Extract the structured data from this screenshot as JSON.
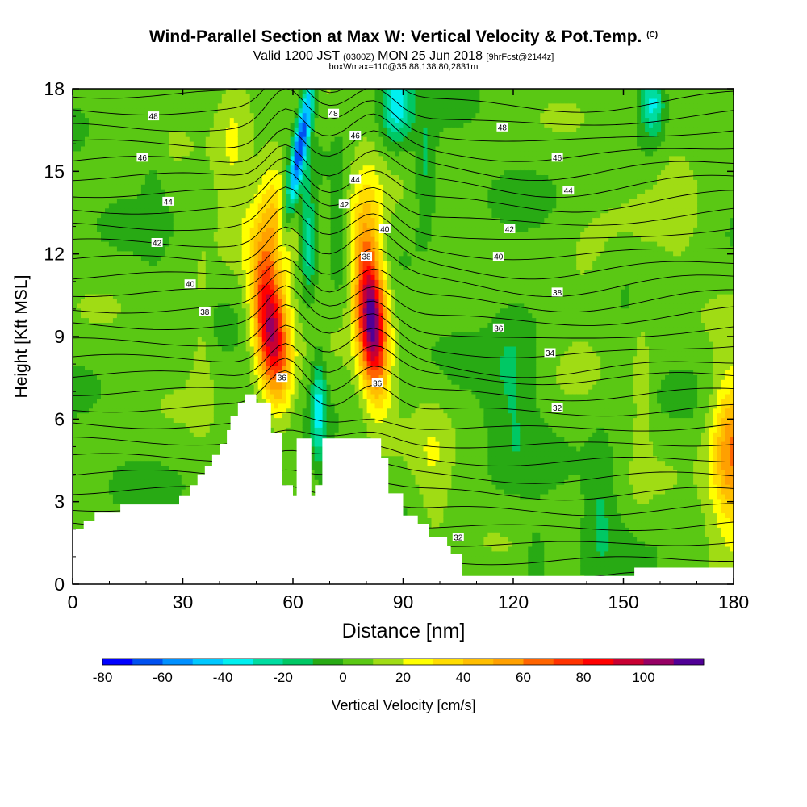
{
  "title": "Wind-Parallel Section at Max W: Vertical Velocity & Pot.Temp.",
  "title_mark": "(C)",
  "subtitle": {
    "part1": "Valid 1200 JST",
    "part2": "(0300Z)",
    "part3": "MON 25 Jun 2018",
    "part4": "[9hrFcst@2144z]"
  },
  "subtitle2": "boxWmax=110@35.88,138.80,2831m",
  "colorbar_label": "Vertical Velocity [cm/s]",
  "colors": {
    "-80": "#0000ff",
    "-70": "#0050f0",
    "-60": "#0090ff",
    "-50": "#00c8ff",
    "-40": "#00f0f0",
    "-30": "#00dca0",
    "-20": "#00c864",
    "-10": "#28aa14",
    "0": "#5ac814",
    "10": "#a0dc14",
    "20": "#ffff00",
    "30": "#ffdc00",
    "40": "#ffbe00",
    "50": "#ffa000",
    "60": "#ff6400",
    "70": "#ff3200",
    "80": "#ff0000",
    "90": "#c80032",
    "100": "#960064",
    "110": "#500096"
  },
  "chart_data": {
    "type": "contour",
    "xlabel": "Distance [nm]",
    "ylabel": "Height [Kft MSL]",
    "xlim": [
      0,
      180
    ],
    "ylim": [
      0,
      18
    ],
    "xticks": [
      "0",
      "30",
      "60",
      "90",
      "120",
      "150",
      "180"
    ],
    "yticks": [
      "0",
      "3",
      "6",
      "9",
      "12",
      "15",
      "18"
    ],
    "colorbar": {
      "levels": [
        -80,
        -70,
        -60,
        -50,
        -40,
        -30,
        -20,
        -10,
        0,
        10,
        20,
        30,
        40,
        50,
        60,
        70,
        80,
        90,
        100,
        110
      ],
      "tick_labels": [
        "-80",
        "-60",
        "-40",
        "-20",
        "0",
        "20",
        "40",
        "60",
        "80",
        "100"
      ],
      "label": "Vertical Velocity [cm/s]"
    },
    "terrain": [
      [
        0,
        2.0
      ],
      [
        3,
        2.0
      ],
      [
        3,
        2.3
      ],
      [
        6,
        2.3
      ],
      [
        6,
        2.6
      ],
      [
        13,
        2.6
      ],
      [
        13,
        2.9
      ],
      [
        29,
        2.9
      ],
      [
        29,
        3.2
      ],
      [
        32,
        3.2
      ],
      [
        32,
        3.6
      ],
      [
        34,
        3.6
      ],
      [
        34,
        4.0
      ],
      [
        36,
        4.0
      ],
      [
        36,
        4.3
      ],
      [
        38,
        4.3
      ],
      [
        38,
        4.7
      ],
      [
        40,
        4.7
      ],
      [
        40,
        5.1
      ],
      [
        42,
        5.1
      ],
      [
        42,
        5.6
      ],
      [
        43,
        5.6
      ],
      [
        43,
        6.1
      ],
      [
        45,
        6.1
      ],
      [
        45,
        6.6
      ],
      [
        47,
        6.6
      ],
      [
        47,
        6.9
      ],
      [
        50,
        6.9
      ],
      [
        50,
        6.6
      ],
      [
        54,
        6.6
      ],
      [
        54,
        5.5
      ],
      [
        57,
        5.5
      ],
      [
        57,
        3.6
      ],
      [
        60,
        3.6
      ],
      [
        60,
        3.2
      ],
      [
        61,
        3.2
      ],
      [
        61,
        5.3
      ],
      [
        65,
        5.3
      ],
      [
        65,
        3.2
      ],
      [
        66,
        3.2
      ],
      [
        66,
        3.6
      ],
      [
        68,
        3.6
      ],
      [
        68,
        5.3
      ],
      [
        84,
        5.3
      ],
      [
        84,
        4.6
      ],
      [
        86,
        4.6
      ],
      [
        86,
        3.3
      ],
      [
        90,
        3.3
      ],
      [
        90,
        2.5
      ],
      [
        94,
        2.5
      ],
      [
        94,
        2.2
      ],
      [
        97,
        2.2
      ],
      [
        97,
        1.7
      ],
      [
        102,
        1.7
      ],
      [
        102,
        1.4
      ],
      [
        103,
        1.4
      ],
      [
        103,
        1.1
      ],
      [
        106,
        1.1
      ],
      [
        106,
        0.3
      ],
      [
        153,
        0.3
      ],
      [
        153,
        0.6
      ],
      [
        180,
        0.6
      ],
      [
        180,
        0.0
      ],
      [
        0,
        0.0
      ]
    ],
    "updrafts": [
      {
        "x": 54.0,
        "z": 9.3,
        "sx": 4.5,
        "sz": 2.6,
        "amp": 100,
        "tilt": -0.12
      },
      {
        "x": 81.5,
        "z": 9.6,
        "sx": 4.0,
        "sz": 2.6,
        "amp": 110,
        "tilt": -0.08
      },
      {
        "x": 55.0,
        "z": 13.5,
        "sx": 5.0,
        "sz": 2.4,
        "amp": 35,
        "tilt": 0.0
      },
      {
        "x": 80.0,
        "z": 13.0,
        "sx": 5.0,
        "sz": 2.4,
        "amp": 30,
        "tilt": 0.0
      },
      {
        "x": 180.0,
        "z": 4.8,
        "sx": 6.0,
        "sz": 2.8,
        "amp": 60,
        "tilt": 0.0
      },
      {
        "x": 44.0,
        "z": 16.0,
        "sx": 5.0,
        "sz": 3.0,
        "amp": 18,
        "tilt": 0.0
      },
      {
        "x": 165.0,
        "z": 15.0,
        "sx": 6.0,
        "sz": 3.0,
        "amp": 12,
        "tilt": 0.0
      },
      {
        "x": 140.0,
        "z": 11.0,
        "sx": 8.0,
        "sz": 2.5,
        "amp": 10,
        "tilt": 0.0
      },
      {
        "x": 155.0,
        "z": 7.0,
        "sx": 2.5,
        "sz": 3.5,
        "amp": 12,
        "tilt": 0.0
      },
      {
        "x": 98.0,
        "z": 4.0,
        "sx": 5.0,
        "sz": 3.0,
        "amp": 12,
        "tilt": 0.0
      },
      {
        "x": 35.0,
        "z": 9.0,
        "sx": 3.0,
        "sz": 3.0,
        "amp": 12,
        "tilt": 0.0
      }
    ],
    "downdrafts": [
      {
        "x": 62.0,
        "z": 16.0,
        "sx": 2.0,
        "sz": 3.0,
        "amp": -70,
        "tilt": 0.22
      },
      {
        "x": 64.0,
        "z": 12.5,
        "sx": 2.0,
        "sz": 2.0,
        "amp": -30,
        "tilt": 0.0
      },
      {
        "x": 67.0,
        "z": 6.5,
        "sx": 2.0,
        "sz": 2.0,
        "amp": -35,
        "tilt": 0.0
      },
      {
        "x": 88.0,
        "z": 17.5,
        "sx": 4.0,
        "sz": 1.5,
        "amp": -40,
        "tilt": 0.0
      },
      {
        "x": 96.0,
        "z": 15.0,
        "sx": 3.0,
        "sz": 2.0,
        "amp": -20,
        "tilt": 0.0
      },
      {
        "x": 158.0,
        "z": 17.5,
        "sx": 3.0,
        "sz": 1.2,
        "amp": -35,
        "tilt": 0.0
      },
      {
        "x": 120.0,
        "z": 7.5,
        "sx": 7.0,
        "sz": 3.5,
        "amp": -15,
        "tilt": 0.0
      },
      {
        "x": 144.0,
        "z": 3.0,
        "sx": 4.0,
        "sz": 2.5,
        "amp": -15,
        "tilt": 0.0
      },
      {
        "x": 126.0,
        "z": 1.0,
        "sx": 3.0,
        "sz": 1.5,
        "amp": -12,
        "tilt": 0.0
      },
      {
        "x": 22.0,
        "z": 15.0,
        "sx": 3.0,
        "sz": 3.0,
        "amp": -8,
        "tilt": 0.0
      },
      {
        "x": 73.0,
        "z": 13.5,
        "sx": 2.5,
        "sz": 3.0,
        "amp": -10,
        "tilt": 0.0
      }
    ],
    "theta_contour_labels": [
      {
        "label": "48",
        "x": 22,
        "z": 17.0
      },
      {
        "label": "48",
        "x": 71,
        "z": 17.1
      },
      {
        "label": "48",
        "x": 117,
        "z": 16.6
      },
      {
        "label": "46",
        "x": 19,
        "z": 15.5
      },
      {
        "label": "46",
        "x": 77,
        "z": 16.3
      },
      {
        "label": "46",
        "x": 132,
        "z": 15.5
      },
      {
        "label": "44",
        "x": 26,
        "z": 13.9
      },
      {
        "label": "44",
        "x": 77,
        "z": 14.7
      },
      {
        "label": "44",
        "x": 135,
        "z": 14.3
      },
      {
        "label": "42",
        "x": 23,
        "z": 12.4
      },
      {
        "label": "42",
        "x": 74,
        "z": 13.8
      },
      {
        "label": "42",
        "x": 119,
        "z": 12.9
      },
      {
        "label": "40",
        "x": 32,
        "z": 10.9
      },
      {
        "label": "40",
        "x": 85,
        "z": 12.9
      },
      {
        "label": "40",
        "x": 116,
        "z": 11.9
      },
      {
        "label": "38",
        "x": 36,
        "z": 9.9
      },
      {
        "label": "38",
        "x": 80,
        "z": 11.9
      },
      {
        "label": "38",
        "x": 132,
        "z": 10.6
      },
      {
        "label": "36",
        "x": 57,
        "z": 7.5
      },
      {
        "label": "36",
        "x": 83,
        "z": 7.3
      },
      {
        "label": "36",
        "x": 116,
        "z": 9.3
      },
      {
        "label": "34",
        "x": 130,
        "z": 8.4
      },
      {
        "label": "32",
        "x": 132,
        "z": 6.4
      },
      {
        "label": "32",
        "x": 105,
        "z": 1.7
      }
    ]
  }
}
